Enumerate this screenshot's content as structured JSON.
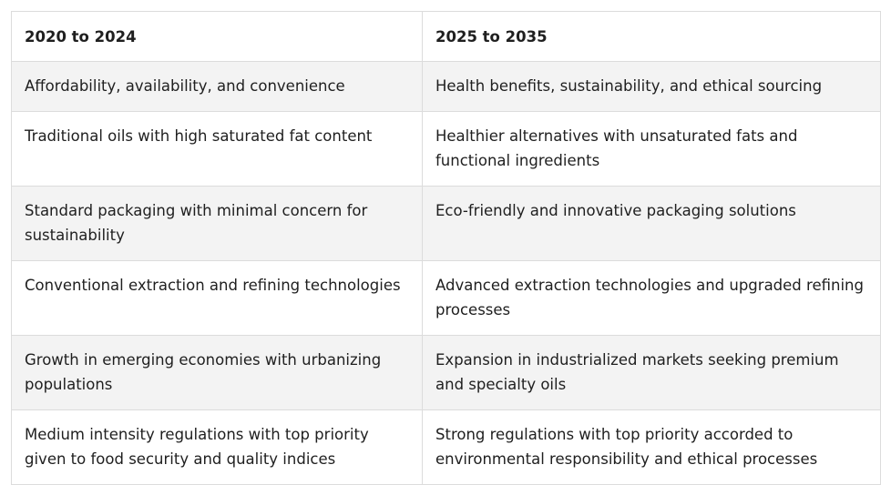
{
  "table": {
    "headers": [
      "2020 to 2024",
      "2025 to 2035"
    ],
    "rows": [
      [
        "Affordability, availability, and convenience",
        "Health benefits, sustainability, and ethical sourcing"
      ],
      [
        "Traditional oils with high saturated fat content",
        "Healthier alternatives with unsaturated fats and functional ingredients"
      ],
      [
        "Standard packaging with minimal concern for sustainability",
        "Eco-friendly and innovative packaging solutions"
      ],
      [
        "Conventional extraction and refining technologies",
        "Advanced extraction technologies and upgraded refining processes"
      ],
      [
        "Growth in emerging economies with urbanizing populations",
        "Expansion in industrialized markets seeking premium and specialty oils"
      ],
      [
        "Medium intensity regulations with top priority given to food security and quality indices",
        "Strong regulations with top priority accorded to environmental responsibility and ethical processes"
      ]
    ]
  }
}
